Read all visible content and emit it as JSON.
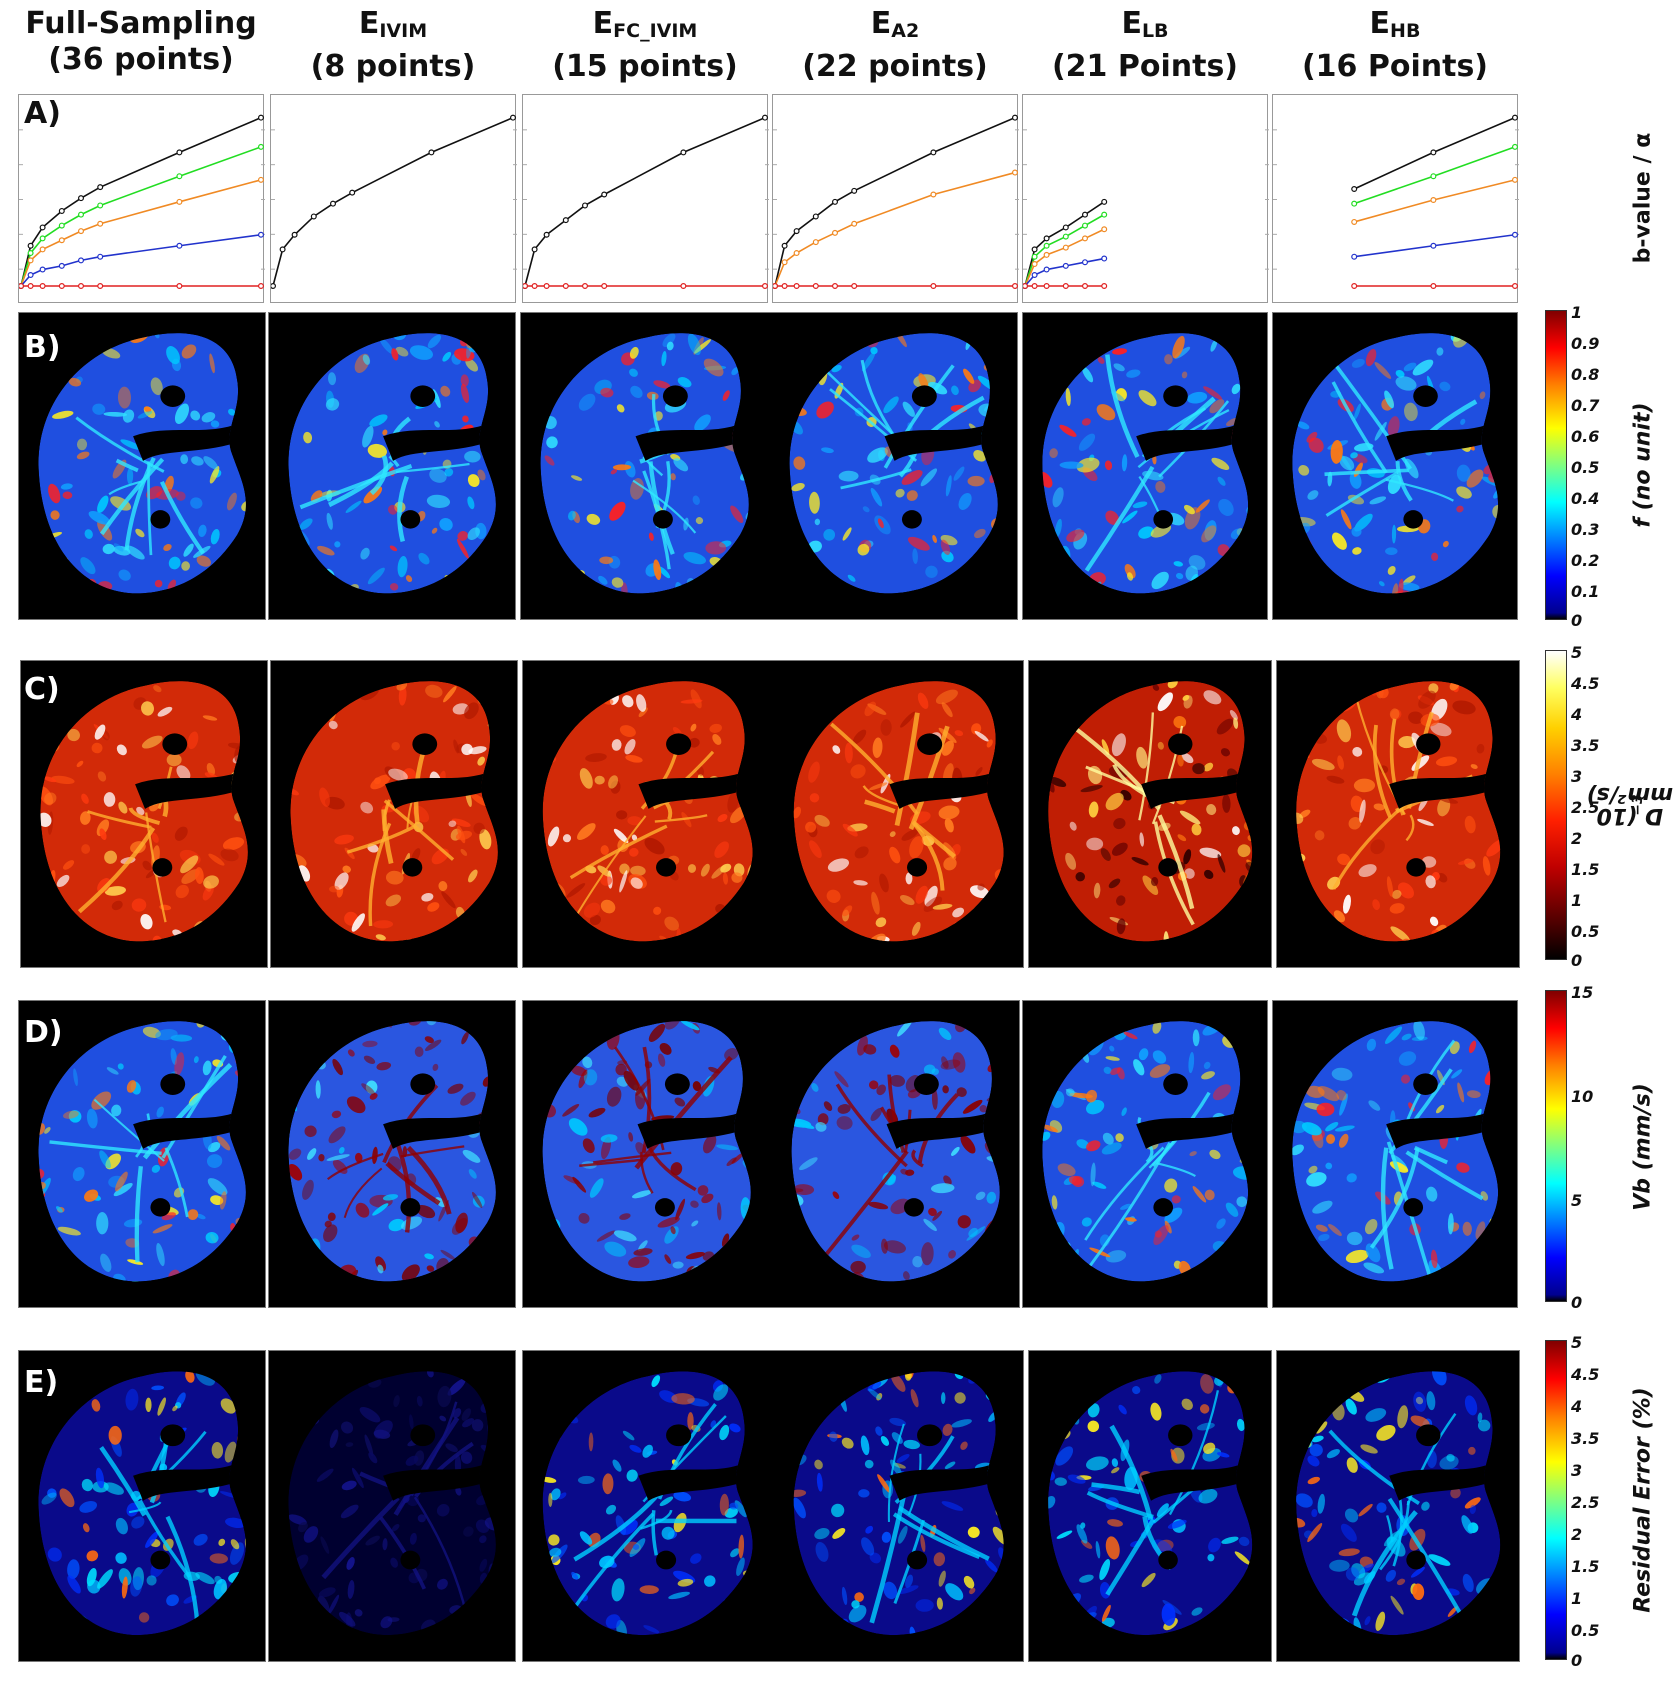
{
  "columns": [
    {
      "line1": "Full-Sampling",
      "sub": "",
      "line2": "(36 points)"
    },
    {
      "line1": "E",
      "sub": "IVIM",
      "line2": "(8 points)"
    },
    {
      "line1": "E",
      "sub": "FC_IVIM",
      "line2": "(15 points)"
    },
    {
      "line1": "E",
      "sub": "A2",
      "line2": "(22 points)"
    },
    {
      "line1": "E",
      "sub": "LB",
      "line2": "(21 Points)"
    },
    {
      "line1": "E",
      "sub": "HB",
      "line2": "(16 Points)"
    }
  ],
  "rows": {
    "a": "A)",
    "b": "B)",
    "c": "C)",
    "d": "D)",
    "e": "E)"
  },
  "axis_labels": {
    "a": "b-value / α",
    "b": "f (no unit)",
    "c_main": "D (10",
    "c_sup": "−3",
    "c_tail": " mm²/s)",
    "d": "Vb (mm/s)",
    "e": "Residual Error (%)"
  },
  "colorbars": {
    "b": {
      "ticks": [
        "1",
        "0.9",
        "0.8",
        "0.7",
        "0.6",
        "0.5",
        "0.4",
        "0.3",
        "0.2",
        "0.1",
        "0"
      ],
      "map": "jet"
    },
    "c": {
      "ticks": [
        "5",
        "4.5",
        "4",
        "3.5",
        "3",
        "2.5",
        "2",
        "1.5",
        "1",
        "0.5",
        "0"
      ],
      "map": "hot"
    },
    "d": {
      "ticks": [
        "15",
        "10",
        "5",
        "0"
      ],
      "map": "jet"
    },
    "e": {
      "ticks": [
        "5",
        "4.5",
        "4",
        "3.5",
        "3",
        "2.5",
        "2",
        "1.5",
        "1",
        "0.5",
        "0"
      ],
      "map": "jet"
    }
  },
  "colors": {
    "black": "#111111",
    "green": "#22dd22",
    "orange": "#f08a24",
    "blue": "#2233cc",
    "red": "#e02020"
  },
  "chart_data": [
    {
      "type": "line",
      "panel": "Full-Sampling",
      "series": [
        {
          "color": "black",
          "points": [
            [
              0,
              0
            ],
            [
              0.04,
              0.22
            ],
            [
              0.09,
              0.32
            ],
            [
              0.17,
              0.41
            ],
            [
              0.25,
              0.48
            ],
            [
              0.33,
              0.54
            ],
            [
              0.66,
              0.73
            ],
            [
              1.0,
              0.92
            ]
          ]
        },
        {
          "color": "green",
          "points": [
            [
              0,
              0
            ],
            [
              0.04,
              0.18
            ],
            [
              0.09,
              0.26
            ],
            [
              0.17,
              0.33
            ],
            [
              0.25,
              0.39
            ],
            [
              0.33,
              0.44
            ],
            [
              0.66,
              0.6
            ],
            [
              1.0,
              0.76
            ]
          ]
        },
        {
          "color": "orange",
          "points": [
            [
              0,
              0
            ],
            [
              0.04,
              0.14
            ],
            [
              0.09,
              0.2
            ],
            [
              0.17,
              0.25
            ],
            [
              0.25,
              0.3
            ],
            [
              0.33,
              0.34
            ],
            [
              0.66,
              0.46
            ],
            [
              1.0,
              0.58
            ]
          ]
        },
        {
          "color": "blue",
          "points": [
            [
              0,
              0
            ],
            [
              0.04,
              0.06
            ],
            [
              0.09,
              0.09
            ],
            [
              0.17,
              0.11
            ],
            [
              0.25,
              0.14
            ],
            [
              0.33,
              0.16
            ],
            [
              0.66,
              0.22
            ],
            [
              1.0,
              0.28
            ]
          ]
        },
        {
          "color": "red",
          "points": [
            [
              0,
              0
            ],
            [
              0.04,
              0
            ],
            [
              0.09,
              0
            ],
            [
              0.17,
              0
            ],
            [
              0.25,
              0
            ],
            [
              0.33,
              0
            ],
            [
              0.66,
              0
            ],
            [
              1.0,
              0
            ]
          ]
        }
      ]
    },
    {
      "type": "line",
      "panel": "E_IVIM",
      "series": [
        {
          "color": "black",
          "points": [
            [
              0,
              0
            ],
            [
              0.04,
              0.2
            ],
            [
              0.09,
              0.28
            ],
            [
              0.17,
              0.38
            ],
            [
              0.25,
              0.45
            ],
            [
              0.33,
              0.51
            ],
            [
              0.66,
              0.73
            ],
            [
              1.0,
              0.92
            ]
          ]
        }
      ]
    },
    {
      "type": "line",
      "panel": "E_FC_IVIM",
      "series": [
        {
          "color": "black",
          "points": [
            [
              0,
              0
            ],
            [
              0.04,
              0.2
            ],
            [
              0.09,
              0.28
            ],
            [
              0.17,
              0.36
            ],
            [
              0.25,
              0.44
            ],
            [
              0.33,
              0.5
            ],
            [
              0.66,
              0.73
            ],
            [
              1.0,
              0.92
            ]
          ]
        },
        {
          "color": "red",
          "points": [
            [
              0,
              0
            ],
            [
              0.04,
              0
            ],
            [
              0.09,
              0
            ],
            [
              0.17,
              0
            ],
            [
              0.25,
              0
            ],
            [
              0.33,
              0
            ],
            [
              0.66,
              0
            ],
            [
              1.0,
              0
            ]
          ]
        }
      ]
    },
    {
      "type": "line",
      "panel": "E_A2",
      "series": [
        {
          "color": "black",
          "points": [
            [
              0,
              0
            ],
            [
              0.04,
              0.22
            ],
            [
              0.09,
              0.3
            ],
            [
              0.17,
              0.38
            ],
            [
              0.25,
              0.46
            ],
            [
              0.33,
              0.52
            ],
            [
              0.66,
              0.73
            ],
            [
              1.0,
              0.92
            ]
          ]
        },
        {
          "color": "orange",
          "points": [
            [
              0,
              0
            ],
            [
              0.04,
              0.13
            ],
            [
              0.09,
              0.18
            ],
            [
              0.17,
              0.24
            ],
            [
              0.25,
              0.29
            ],
            [
              0.33,
              0.34
            ],
            [
              0.66,
              0.5
            ],
            [
              1.0,
              0.62
            ]
          ]
        },
        {
          "color": "red",
          "points": [
            [
              0,
              0
            ],
            [
              0.04,
              0
            ],
            [
              0.09,
              0
            ],
            [
              0.17,
              0
            ],
            [
              0.25,
              0
            ],
            [
              0.33,
              0
            ],
            [
              0.66,
              0
            ],
            [
              1.0,
              0
            ]
          ]
        }
      ]
    },
    {
      "type": "line",
      "panel": "E_LB",
      "series": [
        {
          "color": "black",
          "points": [
            [
              0,
              0
            ],
            [
              0.04,
              0.2
            ],
            [
              0.09,
              0.26
            ],
            [
              0.17,
              0.32
            ],
            [
              0.25,
              0.39
            ],
            [
              0.33,
              0.46
            ]
          ]
        },
        {
          "color": "green",
          "points": [
            [
              0,
              0
            ],
            [
              0.04,
              0.16
            ],
            [
              0.09,
              0.22
            ],
            [
              0.17,
              0.27
            ],
            [
              0.25,
              0.33
            ],
            [
              0.33,
              0.39
            ]
          ]
        },
        {
          "color": "orange",
          "points": [
            [
              0,
              0
            ],
            [
              0.04,
              0.12
            ],
            [
              0.09,
              0.17
            ],
            [
              0.17,
              0.21
            ],
            [
              0.25,
              0.26
            ],
            [
              0.33,
              0.31
            ]
          ]
        },
        {
          "color": "blue",
          "points": [
            [
              0,
              0
            ],
            [
              0.04,
              0.06
            ],
            [
              0.09,
              0.09
            ],
            [
              0.17,
              0.11
            ],
            [
              0.25,
              0.13
            ],
            [
              0.33,
              0.15
            ]
          ]
        },
        {
          "color": "red",
          "points": [
            [
              0,
              0
            ],
            [
              0.04,
              0
            ],
            [
              0.09,
              0
            ],
            [
              0.17,
              0
            ],
            [
              0.25,
              0
            ],
            [
              0.33,
              0
            ]
          ]
        }
      ]
    },
    {
      "type": "line",
      "panel": "E_HB",
      "series": [
        {
          "color": "black",
          "points": [
            [
              0.33,
              0.53
            ],
            [
              0.66,
              0.73
            ],
            [
              1.0,
              0.92
            ]
          ]
        },
        {
          "color": "green",
          "points": [
            [
              0.33,
              0.45
            ],
            [
              0.66,
              0.6
            ],
            [
              1.0,
              0.76
            ]
          ]
        },
        {
          "color": "orange",
          "points": [
            [
              0.33,
              0.35
            ],
            [
              0.66,
              0.47
            ],
            [
              1.0,
              0.58
            ]
          ]
        },
        {
          "color": "blue",
          "points": [
            [
              0.33,
              0.16
            ],
            [
              0.66,
              0.22
            ],
            [
              1.0,
              0.28
            ]
          ]
        },
        {
          "color": "red",
          "points": [
            [
              0.33,
              0
            ],
            [
              0.66,
              0
            ],
            [
              1.0,
              0
            ]
          ]
        }
      ]
    }
  ]
}
